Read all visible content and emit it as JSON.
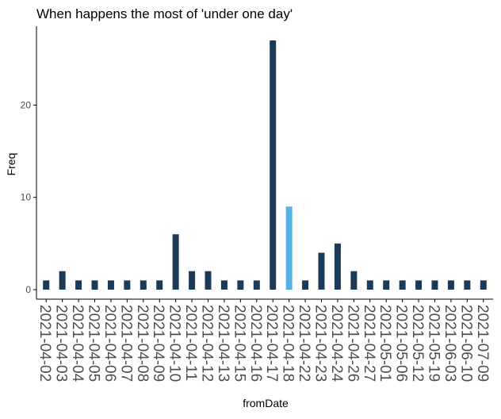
{
  "chart_data": {
    "type": "bar",
    "title": "When happens the most of 'under one day'",
    "xlabel": "fromDate",
    "ylabel": "Freq",
    "categories": [
      "2021-04-02",
      "2021-04-03",
      "2021-04-04",
      "2021-04-05",
      "2021-04-06",
      "2021-04-07",
      "2021-04-08",
      "2021-04-09",
      "2021-04-10",
      "2021-04-11",
      "2021-04-12",
      "2021-04-13",
      "2021-04-15",
      "2021-04-16",
      "2021-04-17",
      "2021-04-18",
      "2021-04-22",
      "2021-04-23",
      "2021-04-24",
      "2021-04-26",
      "2021-04-27",
      "2021-05-01",
      "2021-05-06",
      "2021-05-12",
      "2021-05-19",
      "2021-06-03",
      "2021-06-10",
      "2021-07-09"
    ],
    "values": [
      1,
      2,
      1,
      1,
      1,
      1,
      1,
      1,
      6,
      2,
      2,
      1,
      1,
      1,
      27,
      9,
      1,
      4,
      5,
      2,
      1,
      1,
      1,
      1,
      1,
      1,
      1,
      1
    ],
    "highlight_category": "2021-04-18",
    "yticks": [
      0,
      10,
      20
    ],
    "ylim": [
      0,
      28.5
    ],
    "grid": false,
    "legend": "none",
    "colors": {
      "bar": "#1b3a57",
      "highlight": "#56b0e8",
      "axis": "#000000",
      "tick_text": "#4d4d4d"
    }
  }
}
